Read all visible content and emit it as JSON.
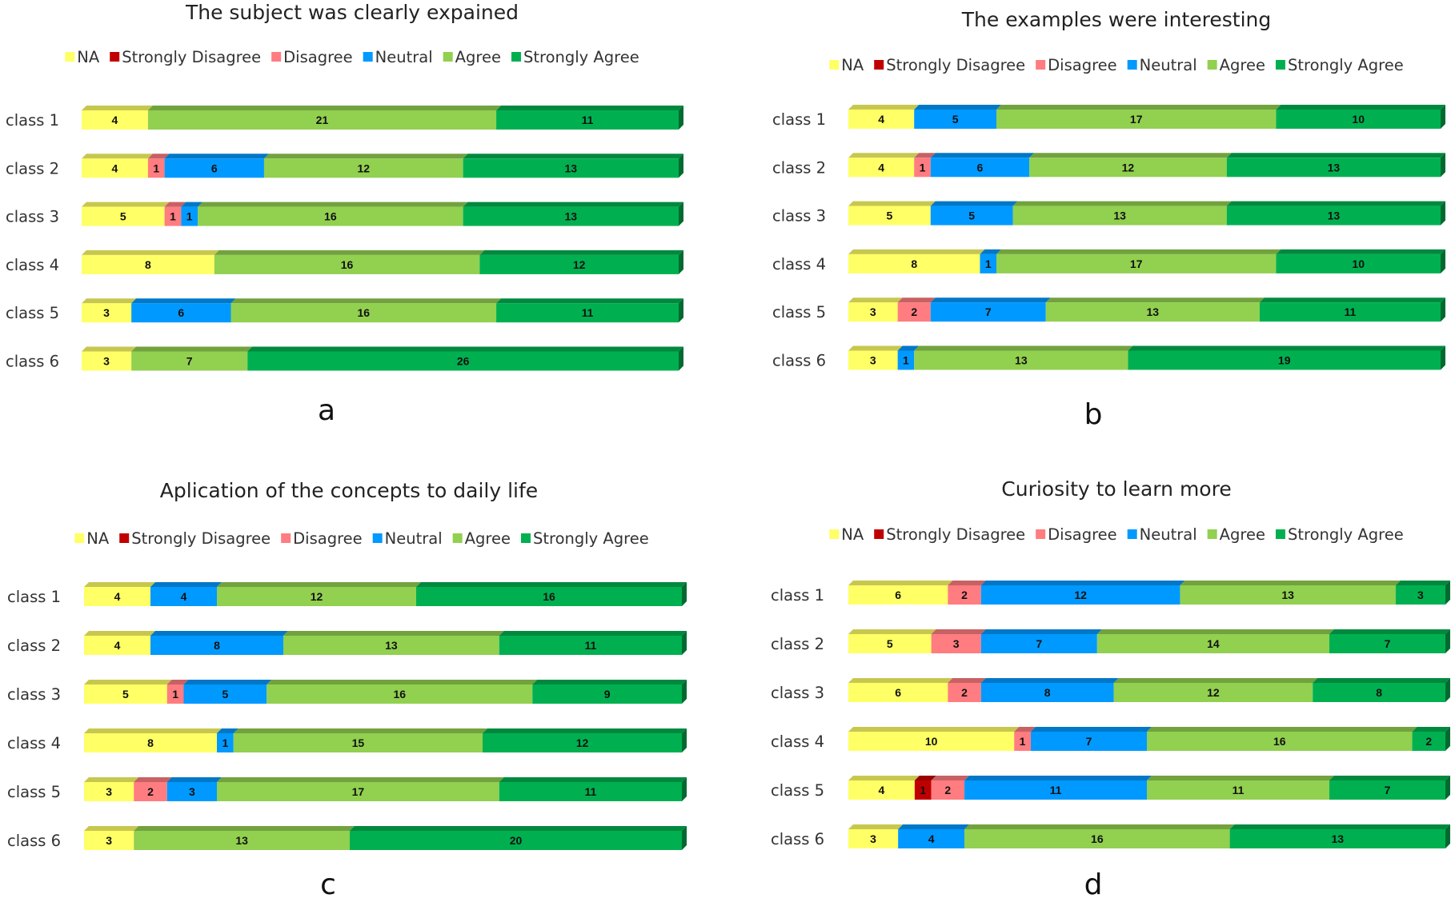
{
  "legend": {
    "categories": [
      "NA",
      "Strongly Disagree",
      "Disagree",
      "Neutral",
      "Agree",
      "Strongly Agree"
    ],
    "colors": [
      "#FFFF66",
      "#C00000",
      "#FF7C80",
      "#0099FF",
      "#92D050",
      "#00B050"
    ]
  },
  "chart_data": [
    {
      "type": "bar",
      "orientation": "horizontal-stacked",
      "panel": "a",
      "title": "The subject was clearly expained",
      "legend_position": "top",
      "categories": [
        "class 1",
        "class 2",
        "class 3",
        "class 4",
        "class 5",
        "class 6"
      ],
      "series": [
        {
          "name": "NA",
          "values": [
            4,
            4,
            5,
            8,
            3,
            3
          ]
        },
        {
          "name": "Strongly Disagree",
          "values": [
            0,
            0,
            0,
            0,
            0,
            0
          ]
        },
        {
          "name": "Disagree",
          "values": [
            0,
            1,
            1,
            0,
            0,
            0
          ]
        },
        {
          "name": "Neutral",
          "values": [
            0,
            6,
            1,
            0,
            6,
            0
          ]
        },
        {
          "name": "Agree",
          "values": [
            21,
            12,
            16,
            16,
            16,
            7
          ]
        },
        {
          "name": "Strongly Agree",
          "values": [
            11,
            13,
            13,
            12,
            11,
            26
          ]
        }
      ],
      "xlim": [
        0,
        36
      ],
      "grid": false
    },
    {
      "type": "bar",
      "orientation": "horizontal-stacked",
      "panel": "b",
      "title": "The examples were interesting",
      "legend_position": "top",
      "categories": [
        "class 1",
        "class 2",
        "class 3",
        "class 4",
        "class 5",
        "class 6"
      ],
      "series": [
        {
          "name": "NA",
          "values": [
            4,
            4,
            5,
            8,
            3,
            3
          ]
        },
        {
          "name": "Strongly Disagree",
          "values": [
            0,
            0,
            0,
            0,
            0,
            0
          ]
        },
        {
          "name": "Disagree",
          "values": [
            0,
            1,
            0,
            0,
            2,
            0
          ]
        },
        {
          "name": "Neutral",
          "values": [
            5,
            6,
            5,
            1,
            7,
            1
          ]
        },
        {
          "name": "Agree",
          "values": [
            17,
            12,
            13,
            17,
            13,
            13
          ]
        },
        {
          "name": "Strongly Agree",
          "values": [
            10,
            13,
            13,
            10,
            11,
            19
          ]
        }
      ],
      "xlim": [
        0,
        36
      ],
      "grid": false
    },
    {
      "type": "bar",
      "orientation": "horizontal-stacked",
      "panel": "c",
      "title": "Aplication of the concepts to daily life",
      "legend_position": "top",
      "categories": [
        "class 1",
        "class 2",
        "class 3",
        "class 4",
        "class 5",
        "class 6"
      ],
      "series": [
        {
          "name": "NA",
          "values": [
            4,
            4,
            5,
            8,
            3,
            3
          ]
        },
        {
          "name": "Strongly Disagree",
          "values": [
            0,
            0,
            0,
            0,
            0,
            0
          ]
        },
        {
          "name": "Disagree",
          "values": [
            0,
            0,
            1,
            0,
            2,
            0
          ]
        },
        {
          "name": "Neutral",
          "values": [
            4,
            8,
            5,
            1,
            3,
            0
          ]
        },
        {
          "name": "Agree",
          "values": [
            12,
            13,
            16,
            15,
            17,
            13
          ]
        },
        {
          "name": "Strongly Agree",
          "values": [
            16,
            11,
            9,
            12,
            11,
            20
          ]
        }
      ],
      "xlim": [
        0,
        36
      ],
      "grid": false
    },
    {
      "type": "bar",
      "orientation": "horizontal-stacked",
      "panel": "d",
      "title": "Curiosity to learn more",
      "legend_position": "top",
      "categories": [
        "class 1",
        "class 2",
        "class 3",
        "class 4",
        "class 5",
        "class 6"
      ],
      "series": [
        {
          "name": "NA",
          "values": [
            6,
            5,
            6,
            10,
            4,
            3
          ]
        },
        {
          "name": "Strongly Disagree",
          "values": [
            0,
            0,
            0,
            0,
            1,
            0
          ]
        },
        {
          "name": "Disagree",
          "values": [
            2,
            3,
            2,
            1,
            2,
            0
          ]
        },
        {
          "name": "Neutral",
          "values": [
            12,
            7,
            8,
            7,
            11,
            4
          ]
        },
        {
          "name": "Agree",
          "values": [
            13,
            14,
            12,
            16,
            11,
            16
          ]
        },
        {
          "name": "Strongly Agree",
          "values": [
            3,
            7,
            8,
            2,
            7,
            13
          ]
        }
      ],
      "xlim": [
        0,
        36
      ],
      "grid": false
    }
  ]
}
